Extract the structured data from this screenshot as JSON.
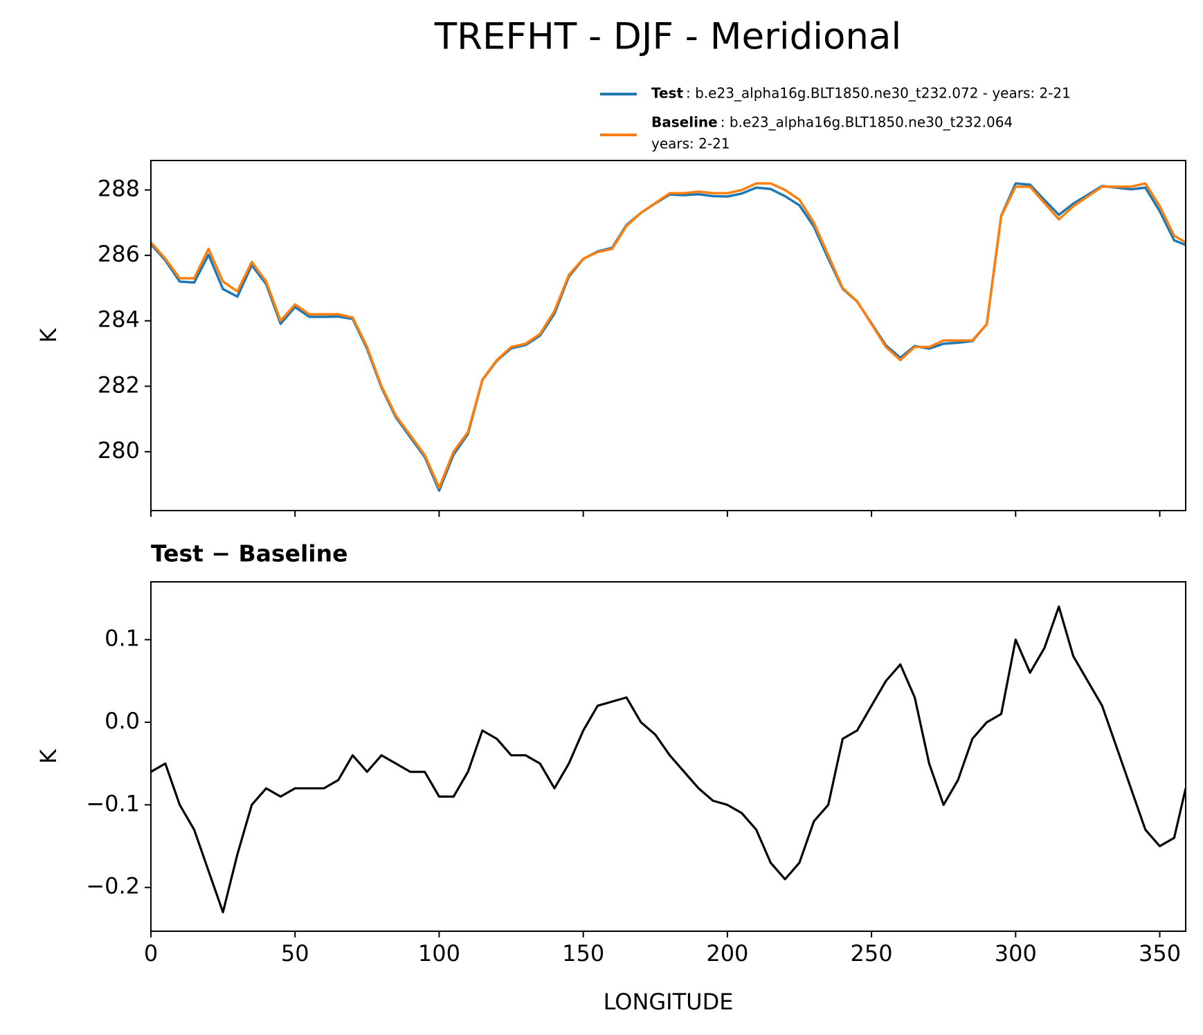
{
  "chart_data": [
    {
      "type": "line",
      "title": "TREFHT - DJF - Meridional",
      "ylabel": "K",
      "x": [
        0,
        5,
        10,
        15,
        20,
        25,
        30,
        35,
        40,
        45,
        50,
        55,
        60,
        65,
        70,
        75,
        80,
        85,
        90,
        95,
        100,
        105,
        110,
        115,
        120,
        125,
        130,
        135,
        140,
        145,
        150,
        155,
        160,
        165,
        170,
        175,
        180,
        185,
        190,
        195,
        200,
        205,
        210,
        215,
        220,
        225,
        230,
        235,
        240,
        245,
        250,
        255,
        260,
        265,
        270,
        275,
        280,
        285,
        290,
        295,
        300,
        305,
        310,
        315,
        320,
        325,
        330,
        335,
        340,
        345,
        350,
        355,
        359
      ],
      "series": [
        {
          "name": "Test",
          "description": [
            ": b.e23_alpha16g.BLT1850.ne30_t232.072 - years: 2-21"
          ],
          "color": "#1f77b4",
          "values": [
            286.34,
            285.85,
            285.2,
            285.17,
            286.02,
            284.97,
            284.74,
            285.7,
            285.12,
            283.91,
            284.42,
            284.12,
            284.12,
            284.13,
            284.06,
            283.14,
            281.96,
            281.05,
            280.44,
            279.84,
            278.81,
            279.91,
            280.54,
            282.19,
            282.78,
            283.16,
            283.26,
            283.55,
            284.22,
            285.35,
            285.89,
            286.12,
            286.23,
            286.93,
            287.3,
            287.59,
            287.86,
            287.84,
            287.87,
            287.81,
            287.8,
            287.89,
            288.07,
            288.03,
            287.81,
            287.53,
            286.88,
            285.9,
            284.98,
            284.59,
            283.92,
            283.25,
            282.87,
            283.23,
            283.15,
            283.3,
            283.33,
            283.38,
            283.9,
            287.21,
            288.2,
            288.16,
            287.69,
            287.24,
            287.58,
            287.85,
            288.12,
            288.07,
            288.02,
            288.07,
            287.35,
            286.46,
            286.32
          ]
        },
        {
          "name": "Baseline",
          "description": [
            ": b.e23_alpha16g.BLT1850.ne30_t232.064",
            "years: 2-21"
          ],
          "color": "#ff7f0e",
          "values": [
            286.4,
            285.9,
            285.3,
            285.3,
            286.2,
            285.2,
            284.9,
            285.8,
            285.2,
            284.0,
            284.5,
            284.2,
            284.2,
            284.2,
            284.1,
            283.2,
            282.0,
            281.1,
            280.5,
            279.9,
            278.9,
            280.0,
            280.6,
            282.2,
            282.8,
            283.2,
            283.3,
            283.6,
            284.3,
            285.4,
            285.9,
            286.1,
            286.2,
            286.9,
            287.3,
            287.6,
            287.9,
            287.9,
            287.95,
            287.9,
            287.9,
            288.0,
            288.2,
            288.2,
            288.0,
            287.7,
            287.0,
            286.0,
            285.0,
            284.6,
            283.9,
            283.2,
            282.8,
            283.2,
            283.2,
            283.4,
            283.4,
            283.4,
            283.9,
            287.2,
            288.1,
            288.1,
            287.6,
            287.1,
            287.5,
            287.8,
            288.1,
            288.1,
            288.1,
            288.2,
            287.5,
            286.6,
            286.4
          ]
        }
      ],
      "xlim": [
        0,
        359
      ],
      "xticks": [
        0,
        50,
        100,
        150,
        200,
        250,
        300,
        350
      ],
      "xticklabels": false,
      "ylim": [
        278.2,
        288.9
      ],
      "yticks": [
        280,
        282,
        284,
        286,
        288
      ]
    },
    {
      "type": "line",
      "title": "Test − Baseline",
      "ylabel": "K",
      "xlabel": "LONGITUDE",
      "x": [
        0,
        5,
        10,
        15,
        20,
        25,
        30,
        35,
        40,
        45,
        50,
        55,
        60,
        65,
        70,
        75,
        80,
        85,
        90,
        95,
        100,
        105,
        110,
        115,
        120,
        125,
        130,
        135,
        140,
        145,
        150,
        155,
        160,
        165,
        170,
        175,
        180,
        185,
        190,
        195,
        200,
        205,
        210,
        215,
        220,
        225,
        230,
        235,
        240,
        245,
        250,
        255,
        260,
        265,
        270,
        275,
        280,
        285,
        290,
        295,
        300,
        305,
        310,
        315,
        320,
        325,
        330,
        335,
        340,
        345,
        350,
        355,
        359
      ],
      "color": "#000000",
      "values": [
        -0.06,
        -0.05,
        -0.1,
        -0.13,
        -0.18,
        -0.23,
        -0.16,
        -0.1,
        -0.08,
        -0.09,
        -0.08,
        -0.08,
        -0.08,
        -0.07,
        -0.04,
        -0.06,
        -0.04,
        -0.05,
        -0.06,
        -0.06,
        -0.09,
        -0.09,
        -0.06,
        -0.01,
        -0.02,
        -0.04,
        -0.04,
        -0.05,
        -0.08,
        -0.05,
        -0.01,
        0.02,
        0.025,
        0.03,
        0.0,
        -0.015,
        -0.04,
        -0.06,
        -0.08,
        -0.095,
        -0.1,
        -0.11,
        -0.13,
        -0.17,
        -0.19,
        -0.17,
        -0.12,
        -0.1,
        -0.02,
        -0.01,
        0.02,
        0.05,
        0.07,
        0.03,
        -0.05,
        -0.1,
        -0.07,
        -0.02,
        0.0,
        0.01,
        0.1,
        0.06,
        0.09,
        0.14,
        0.08,
        0.05,
        0.02,
        -0.03,
        -0.08,
        -0.13,
        -0.15,
        -0.14,
        -0.08
      ],
      "xlim": [
        0,
        359
      ],
      "xticks": [
        0,
        50,
        100,
        150,
        200,
        250,
        300,
        350
      ],
      "ylim": [
        -0.253,
        0.17
      ],
      "yticks": [
        {
          "value": -0.2,
          "label": "−0.2"
        },
        {
          "value": -0.1,
          "label": "−0.1"
        },
        {
          "value": 0,
          "label": "0.0"
        },
        0.1
      ]
    }
  ]
}
